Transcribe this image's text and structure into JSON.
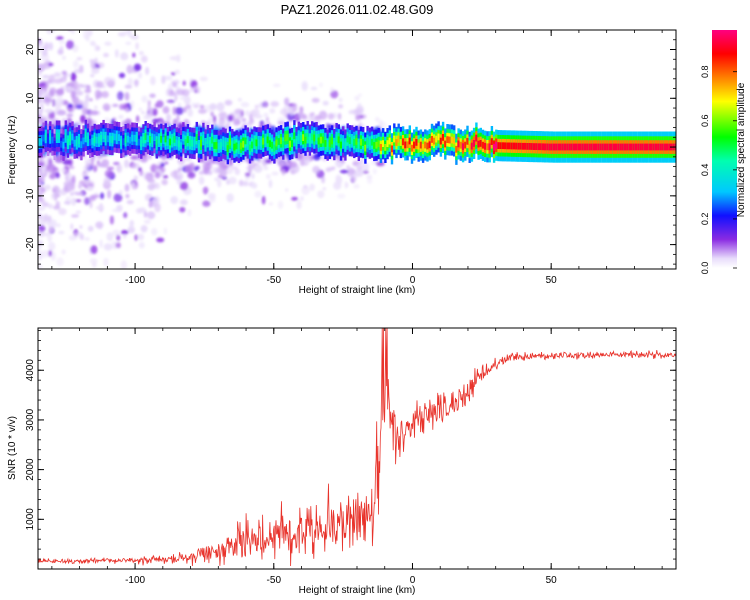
{
  "figure_title": "PAZ1.2026.011.02.48.G09",
  "chart_data": [
    {
      "type": "heatmap",
      "title": "PAZ1.2026.011.02.48.G09",
      "xlabel": "Height of straight line (km)",
      "ylabel": "Frequency (Hz)",
      "xlim": [
        -135,
        95
      ],
      "ylim": [
        -25,
        24
      ],
      "xticks": [
        -100,
        -50,
        0,
        50
      ],
      "yticks": [
        -20,
        -10,
        0,
        10,
        20
      ],
      "xtick_labels": [
        "-100",
        "-50",
        "0",
        "50"
      ],
      "ytick_labels": [
        "-20",
        "-10",
        "0",
        "10",
        "20"
      ],
      "colorbar": {
        "label": "Normalized spectral amplitude",
        "range": [
          0.0,
          0.97
        ],
        "ticks": [
          0.0,
          0.2,
          0.4,
          0.6,
          0.8
        ],
        "tick_labels": [
          "0.0",
          "0.2",
          "0.4",
          "0.6",
          "0.8"
        ],
        "colormap": "rainbow (white-violet-blue-cyan-green-yellow-red-magenta)"
      },
      "ridge": {
        "description": "Main spectral line near 0 Hz; amplitude grows with height",
        "x": [
          -130,
          -100,
          -80,
          -60,
          -40,
          -20,
          -10,
          0,
          10,
          20,
          30,
          50,
          70,
          95
        ],
        "center_hz": [
          1.5,
          1.5,
          1.0,
          0.5,
          1.5,
          1.0,
          0.5,
          0.5,
          1.5,
          0.5,
          0.3,
          0.0,
          0.0,
          0.0
        ],
        "amplitude": [
          0.3,
          0.35,
          0.45,
          0.5,
          0.5,
          0.45,
          0.7,
          0.8,
          0.75,
          0.85,
          0.9,
          0.95,
          0.95,
          0.95
        ]
      },
      "noise_extent_hz": {
        "x": [
          -130,
          -100,
          -80,
          -60,
          -40,
          -20,
          -10
        ],
        "halfwidth": [
          24,
          24,
          14,
          10,
          12,
          9,
          3
        ]
      }
    },
    {
      "type": "line",
      "xlabel": "Height of straight line (km)",
      "ylabel": "SNR (10 * v/v)",
      "xlim": [
        -135,
        95
      ],
      "ylim": [
        0,
        4850
      ],
      "xticks": [
        -100,
        -50,
        0,
        50
      ],
      "yticks": [
        1000,
        2000,
        3000,
        4000
      ],
      "xtick_labels": [
        "-100",
        "-50",
        "0",
        "50"
      ],
      "ytick_labels": [
        "1000",
        "2000",
        "3000",
        "4000"
      ],
      "line_color": "#e8332b",
      "series": [
        {
          "name": "SNR",
          "x": [
            -135,
            -120,
            -100,
            -85,
            -75,
            -65,
            -58,
            -50,
            -40,
            -30,
            -20,
            -14,
            -12,
            -10,
            -8,
            -5,
            0,
            5,
            10,
            15,
            20,
            25,
            30,
            35,
            45,
            60,
            80,
            95
          ],
          "values": [
            150,
            160,
            170,
            200,
            300,
            450,
            600,
            700,
            800,
            900,
            1000,
            1200,
            2500,
            3400,
            3000,
            2700,
            3000,
            3100,
            3200,
            3300,
            3600,
            3900,
            4100,
            4250,
            4300,
            4300,
            4320,
            4300
          ],
          "noise": [
            60,
            60,
            70,
            100,
            200,
            350,
            500,
            550,
            650,
            750,
            800,
            700,
            900,
            900,
            700,
            500,
            450,
            450,
            450,
            380,
            300,
            200,
            120,
            100,
            80,
            80,
            80,
            80
          ]
        }
      ]
    }
  ]
}
